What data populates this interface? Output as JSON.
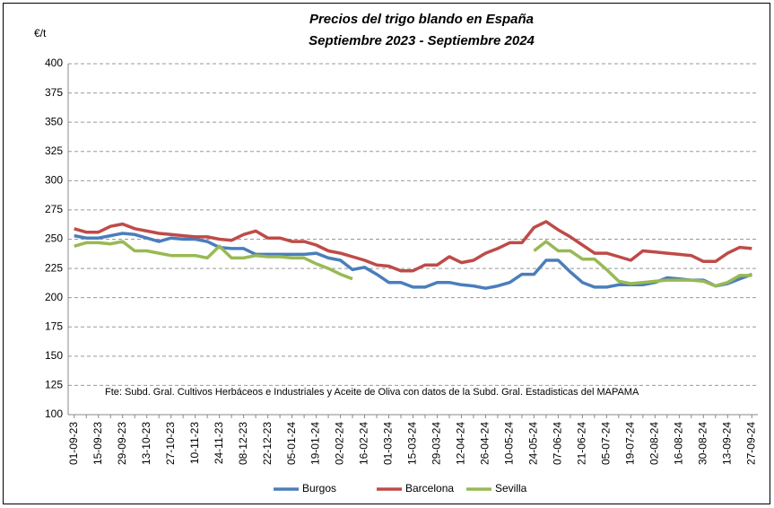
{
  "chart_data": {
    "type": "line",
    "title": "Precios del trigo blando en España",
    "subtitle": "Septiembre 2023 - Septiembre 2024",
    "y_label": "€/t",
    "annotation": "Fte: Subd. Gral. Cultivos Herbáceos e Industriales y Aceite de Oliva  con datos de la Subd. Gral. Estadisticas del MAPAMA",
    "categories": [
      "01-09-23",
      null,
      "15-09-23",
      null,
      "29-09-23",
      null,
      "13-10-23",
      null,
      "27-10-23",
      null,
      "10-11-23",
      null,
      "24-11-23",
      null,
      "08-12-23",
      null,
      "22-12-23",
      null,
      "05-01-24",
      null,
      "19-01-24",
      null,
      "02-02-24",
      null,
      "16-02-24",
      null,
      "01-03-24",
      null,
      "15-03-24",
      null,
      "29-03-24",
      null,
      "12-04-24",
      null,
      "26-04-24",
      null,
      "10-05-24",
      null,
      "24-05-24",
      null,
      "07-06-24",
      null,
      "21-06-24",
      null,
      "05-07-24",
      null,
      "19-07-24",
      null,
      "02-08-24",
      null,
      "16-08-24",
      null,
      "30-08-24",
      null,
      "13-09-24",
      null,
      "27-09-24"
    ],
    "series": [
      {
        "name": "Burgos",
        "color": "#4a7ebb",
        "values": [
          253,
          251,
          251,
          253,
          255,
          254,
          251,
          248,
          251,
          250,
          250,
          248,
          243,
          242,
          242,
          237,
          237,
          237,
          237,
          237,
          238,
          234,
          232,
          224,
          226,
          220,
          213,
          213,
          209,
          209,
          213,
          213,
          211,
          210,
          208,
          210,
          213,
          220,
          220,
          232,
          232,
          222,
          213,
          209,
          209,
          211,
          211,
          211,
          213,
          217,
          216,
          215,
          215,
          210,
          212,
          216,
          220
        ]
      },
      {
        "name": "Barcelona",
        "color": "#be4b48",
        "values": [
          259,
          256,
          256,
          261,
          263,
          259,
          257,
          255,
          254,
          253,
          252,
          252,
          250,
          249,
          254,
          257,
          251,
          251,
          248,
          248,
          245,
          240,
          238,
          235,
          232,
          228,
          227,
          223,
          223,
          228,
          228,
          235,
          230,
          232,
          238,
          242,
          247,
          247,
          260,
          265,
          258,
          252,
          245,
          238,
          238,
          235,
          232,
          240,
          239,
          238,
          237,
          236,
          231,
          231,
          238,
          243,
          242
        ]
      },
      {
        "name": "Sevilla",
        "color": "#98b954",
        "values": [
          244,
          247,
          247,
          246,
          248,
          240,
          240,
          238,
          236,
          236,
          236,
          234,
          244,
          234,
          234,
          236,
          235,
          235,
          234,
          234,
          229,
          225,
          220,
          216,
          null,
          null,
          null,
          null,
          null,
          null,
          null,
          null,
          null,
          null,
          null,
          null,
          null,
          null,
          240,
          248,
          240,
          240,
          233,
          233,
          224,
          214,
          212,
          213,
          214,
          215,
          215,
          215,
          214,
          210,
          213,
          219,
          219
        ]
      }
    ],
    "ylim": [
      100,
      400
    ],
    "yticks": [
      100,
      125,
      150,
      175,
      200,
      225,
      250,
      275,
      300,
      325,
      350,
      375,
      400
    ],
    "grid": true,
    "legend": "bottom"
  }
}
